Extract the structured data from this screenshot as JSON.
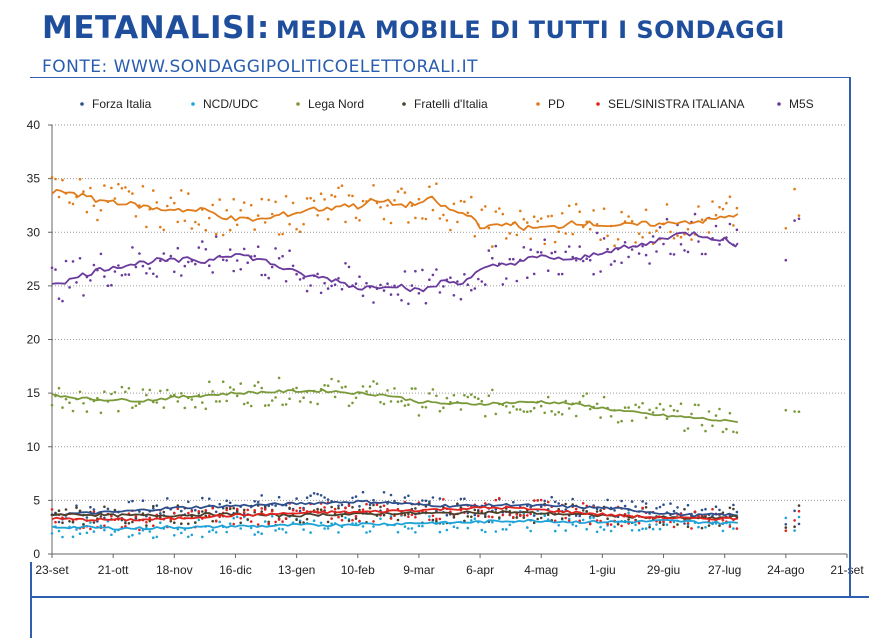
{
  "header": {
    "title_main": "METANALISI:",
    "title_sub": "MEDIA MOBILE DI TUTTI I SONDAGGI",
    "source": "FONTE: WWW.SONDAGGIPOLITICOELETTORALI.IT"
  },
  "chart_data": {
    "type": "line",
    "title": "",
    "xlabel": "",
    "ylabel": "",
    "ylim": [
      0,
      40
    ],
    "yticks": [
      0,
      5,
      10,
      15,
      20,
      25,
      30,
      35,
      40
    ],
    "xlim": [
      0,
      364
    ],
    "xticks": [
      {
        "label": "23-set",
        "day": 0
      },
      {
        "label": "21-ott",
        "day": 28
      },
      {
        "label": "18-nov",
        "day": 56
      },
      {
        "label": "16-dic",
        "day": 84
      },
      {
        "label": "13-gen",
        "day": 112
      },
      {
        "label": "10-feb",
        "day": 140
      },
      {
        "label": "9-mar",
        "day": 168
      },
      {
        "label": "6-apr",
        "day": 196
      },
      {
        "label": "4-mag",
        "day": 224
      },
      {
        "label": "1-giu",
        "day": 252
      },
      {
        "label": "29-giu",
        "day": 280
      },
      {
        "label": "27-lug",
        "day": 308
      },
      {
        "label": "24-ago",
        "day": 336
      },
      {
        "label": "21-set",
        "day": 364
      }
    ],
    "grid": true,
    "legend_position": "top",
    "series": [
      {
        "name": "Forza Italia",
        "color": "#2e4f8c",
        "points": [
          [
            0,
            3.7
          ],
          [
            14,
            3.8
          ],
          [
            28,
            3.9
          ],
          [
            42,
            4.1
          ],
          [
            56,
            4.3
          ],
          [
            70,
            4.4
          ],
          [
            84,
            4.5
          ],
          [
            98,
            4.6
          ],
          [
            112,
            4.7
          ],
          [
            126,
            4.8
          ],
          [
            140,
            4.9
          ],
          [
            154,
            4.8
          ],
          [
            168,
            4.6
          ],
          [
            182,
            4.5
          ],
          [
            196,
            4.5
          ],
          [
            210,
            4.6
          ],
          [
            224,
            4.5
          ],
          [
            238,
            4.4
          ],
          [
            252,
            4.3
          ],
          [
            266,
            4.1
          ],
          [
            280,
            3.8
          ],
          [
            294,
            3.6
          ],
          [
            308,
            3.7
          ],
          [
            314,
            3.6
          ]
        ]
      },
      {
        "name": "NCD/UDC",
        "color": "#1fa3d6",
        "points": [
          [
            0,
            2.5
          ],
          [
            14,
            2.5
          ],
          [
            28,
            2.4
          ],
          [
            42,
            2.4
          ],
          [
            56,
            2.5
          ],
          [
            70,
            2.5
          ],
          [
            84,
            2.6
          ],
          [
            98,
            2.6
          ],
          [
            112,
            2.7
          ],
          [
            126,
            2.7
          ],
          [
            140,
            2.8
          ],
          [
            154,
            2.8
          ],
          [
            168,
            2.9
          ],
          [
            182,
            2.9
          ],
          [
            196,
            3.0
          ],
          [
            210,
            3.1
          ],
          [
            224,
            3.1
          ],
          [
            238,
            3.0
          ],
          [
            252,
            3.0
          ],
          [
            266,
            3.0
          ],
          [
            280,
            3.1
          ],
          [
            294,
            3.0
          ],
          [
            308,
            2.9
          ],
          [
            314,
            2.9
          ]
        ]
      },
      {
        "name": "Lega Nord",
        "color": "#7a9a3a",
        "points": [
          [
            0,
            14.9
          ],
          [
            10,
            14.6
          ],
          [
            20,
            14.4
          ],
          [
            28,
            14.4
          ],
          [
            42,
            14.3
          ],
          [
            56,
            14.6
          ],
          [
            70,
            14.8
          ],
          [
            84,
            15.0
          ],
          [
            98,
            15.1
          ],
          [
            112,
            15.2
          ],
          [
            126,
            15.2
          ],
          [
            140,
            15.0
          ],
          [
            154,
            14.8
          ],
          [
            168,
            14.2
          ],
          [
            182,
            14.0
          ],
          [
            196,
            14.0
          ],
          [
            210,
            14.1
          ],
          [
            224,
            14.2
          ],
          [
            238,
            14.0
          ],
          [
            252,
            13.6
          ],
          [
            266,
            13.2
          ],
          [
            280,
            12.9
          ],
          [
            294,
            12.7
          ],
          [
            308,
            12.4
          ],
          [
            314,
            12.3
          ]
        ]
      },
      {
        "name": "Fratelli d'Italia",
        "color": "#4a3f2a",
        "points": [
          [
            0,
            3.7
          ],
          [
            14,
            3.7
          ],
          [
            28,
            3.6
          ],
          [
            42,
            3.6
          ],
          [
            56,
            3.6
          ],
          [
            70,
            3.7
          ],
          [
            84,
            3.7
          ],
          [
            98,
            3.6
          ],
          [
            112,
            3.6
          ],
          [
            126,
            3.7
          ],
          [
            140,
            3.7
          ],
          [
            154,
            3.8
          ],
          [
            168,
            3.8
          ],
          [
            182,
            3.8
          ],
          [
            196,
            3.9
          ],
          [
            210,
            3.9
          ],
          [
            224,
            3.8
          ],
          [
            238,
            3.7
          ],
          [
            252,
            3.6
          ],
          [
            266,
            3.5
          ],
          [
            280,
            3.4
          ],
          [
            294,
            3.3
          ],
          [
            308,
            3.4
          ],
          [
            314,
            3.5
          ]
        ]
      },
      {
        "name": "PD",
        "color": "#e07b1a",
        "points": [
          [
            0,
            33.7
          ],
          [
            8,
            33.8
          ],
          [
            14,
            33.4
          ],
          [
            20,
            33.0
          ],
          [
            28,
            32.9
          ],
          [
            36,
            32.6
          ],
          [
            42,
            32.4
          ],
          [
            50,
            32.1
          ],
          [
            56,
            32.2
          ],
          [
            64,
            32.0
          ],
          [
            70,
            32.1
          ],
          [
            76,
            31.6
          ],
          [
            84,
            31.2
          ],
          [
            92,
            31.2
          ],
          [
            98,
            31.2
          ],
          [
            104,
            31.6
          ],
          [
            112,
            31.8
          ],
          [
            118,
            32.2
          ],
          [
            126,
            32.1
          ],
          [
            132,
            32.6
          ],
          [
            140,
            32.4
          ],
          [
            146,
            32.9
          ],
          [
            154,
            32.8
          ],
          [
            160,
            32.5
          ],
          [
            168,
            32.7
          ],
          [
            174,
            33.1
          ],
          [
            180,
            32.3
          ],
          [
            186,
            31.8
          ],
          [
            192,
            31.5
          ],
          [
            196,
            30.6
          ],
          [
            202,
            30.5
          ],
          [
            210,
            30.9
          ],
          [
            216,
            30.4
          ],
          [
            224,
            30.4
          ],
          [
            232,
            30.5
          ],
          [
            238,
            31.0
          ],
          [
            246,
            30.8
          ],
          [
            252,
            30.7
          ],
          [
            260,
            30.6
          ],
          [
            266,
            30.7
          ],
          [
            274,
            30.8
          ],
          [
            280,
            30.7
          ],
          [
            286,
            31.0
          ],
          [
            294,
            31.0
          ],
          [
            300,
            31.1
          ],
          [
            308,
            31.4
          ],
          [
            314,
            31.7
          ]
        ]
      },
      {
        "name": "SEL/SINISTRA ITALIANA",
        "color": "#e0231f",
        "points": [
          [
            0,
            3.3
          ],
          [
            14,
            3.2
          ],
          [
            28,
            3.2
          ],
          [
            42,
            3.2
          ],
          [
            56,
            3.3
          ],
          [
            70,
            3.5
          ],
          [
            84,
            3.6
          ],
          [
            98,
            3.7
          ],
          [
            112,
            3.8
          ],
          [
            126,
            3.9
          ],
          [
            140,
            3.9
          ],
          [
            154,
            4.0
          ],
          [
            168,
            4.1
          ],
          [
            182,
            4.2
          ],
          [
            196,
            4.3
          ],
          [
            210,
            4.3
          ],
          [
            224,
            4.1
          ],
          [
            238,
            3.9
          ],
          [
            252,
            3.7
          ],
          [
            266,
            3.5
          ],
          [
            280,
            3.4
          ],
          [
            294,
            3.3
          ],
          [
            308,
            3.3
          ],
          [
            314,
            3.3
          ]
        ]
      },
      {
        "name": "M5S",
        "color": "#6a3a9c",
        "points": [
          [
            0,
            25.3
          ],
          [
            8,
            25.5
          ],
          [
            14,
            26.0
          ],
          [
            20,
            26.4
          ],
          [
            28,
            26.8
          ],
          [
            36,
            27.0
          ],
          [
            42,
            27.2
          ],
          [
            50,
            27.4
          ],
          [
            56,
            27.3
          ],
          [
            64,
            27.5
          ],
          [
            70,
            27.2
          ],
          [
            76,
            27.8
          ],
          [
            84,
            28.0
          ],
          [
            92,
            27.6
          ],
          [
            98,
            27.3
          ],
          [
            104,
            26.8
          ],
          [
            112,
            26.2
          ],
          [
            118,
            25.9
          ],
          [
            126,
            25.7
          ],
          [
            132,
            25.4
          ],
          [
            140,
            24.8
          ],
          [
            146,
            24.9
          ],
          [
            154,
            25.1
          ],
          [
            160,
            25.0
          ],
          [
            168,
            24.5
          ],
          [
            174,
            24.9
          ],
          [
            180,
            25.5
          ],
          [
            186,
            25.2
          ],
          [
            192,
            25.9
          ],
          [
            196,
            26.4
          ],
          [
            202,
            26.8
          ],
          [
            210,
            27.1
          ],
          [
            216,
            27.4
          ],
          [
            224,
            27.7
          ],
          [
            232,
            27.6
          ],
          [
            238,
            27.3
          ],
          [
            246,
            27.8
          ],
          [
            252,
            28.2
          ],
          [
            260,
            28.5
          ],
          [
            266,
            28.6
          ],
          [
            274,
            29.0
          ],
          [
            280,
            29.5
          ],
          [
            286,
            29.8
          ],
          [
            294,
            29.9
          ],
          [
            300,
            29.6
          ],
          [
            308,
            29.3
          ],
          [
            312,
            28.8
          ],
          [
            314,
            29.0
          ]
        ]
      }
    ]
  }
}
